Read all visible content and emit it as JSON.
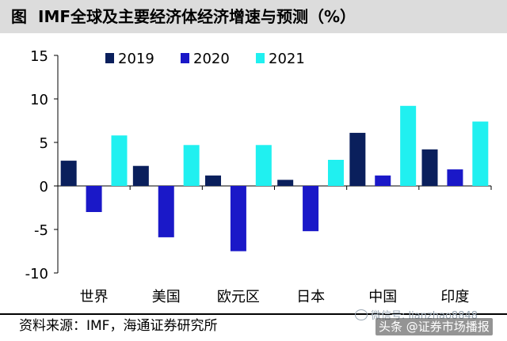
{
  "header": {
    "tag": "图",
    "title": "IMF全球及主要经济体经济增速与预测（%）"
  },
  "source": "资料来源：IMF，海通证券研究所",
  "watermark": {
    "small": "微信号: ​​lianzhao8848",
    "main": "头条 @证券市场播报"
  },
  "colors": {
    "2019": "#0a1f5c",
    "2020": "#1a18c8",
    "2021": "#20f0f0"
  },
  "chart_data": {
    "type": "bar",
    "title": "IMF全球及主要经济体经济增速与预测（%）",
    "categories": [
      "世界",
      "美国",
      "欧元区",
      "日本",
      "中国",
      "印度"
    ],
    "series": [
      {
        "name": "2019",
        "values": [
          2.9,
          2.3,
          1.2,
          0.7,
          6.1,
          4.2
        ]
      },
      {
        "name": "2020",
        "values": [
          -3.0,
          -5.9,
          -7.5,
          -5.2,
          1.2,
          1.9
        ]
      },
      {
        "name": "2021",
        "values": [
          5.8,
          4.7,
          4.7,
          3.0,
          9.2,
          7.4
        ]
      }
    ],
    "yticks": [
      15,
      10,
      5,
      0,
      -5,
      -10
    ],
    "ylim": [
      -10,
      15
    ],
    "xlabel": "",
    "ylabel": "",
    "legend": "top-left"
  }
}
